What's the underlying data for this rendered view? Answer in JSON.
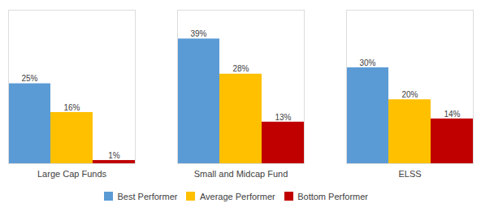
{
  "chart_data": {
    "type": "bar",
    "categories": [
      "Large Cap Funds",
      "Small and Midcap Fund",
      "ELSS"
    ],
    "series": [
      {
        "name": "Best Performer",
        "color": "#5B9BD5",
        "values": [
          25,
          39,
          30
        ],
        "value_labels": [
          "25%",
          "39%",
          "30%"
        ]
      },
      {
        "name": "Average Performer",
        "color": "#FFC000",
        "values": [
          16,
          28,
          20
        ],
        "value_labels": [
          "16%",
          "28%",
          "20%"
        ]
      },
      {
        "name": "Bottom Performer",
        "color": "#C00000",
        "values": [
          1,
          13,
          14
        ],
        "value_labels": [
          "1%",
          "13%",
          "14%"
        ]
      }
    ],
    "ylim": [
      0,
      48
    ],
    "data_labels": true,
    "tick_labels": "x",
    "legend": "bottom"
  }
}
